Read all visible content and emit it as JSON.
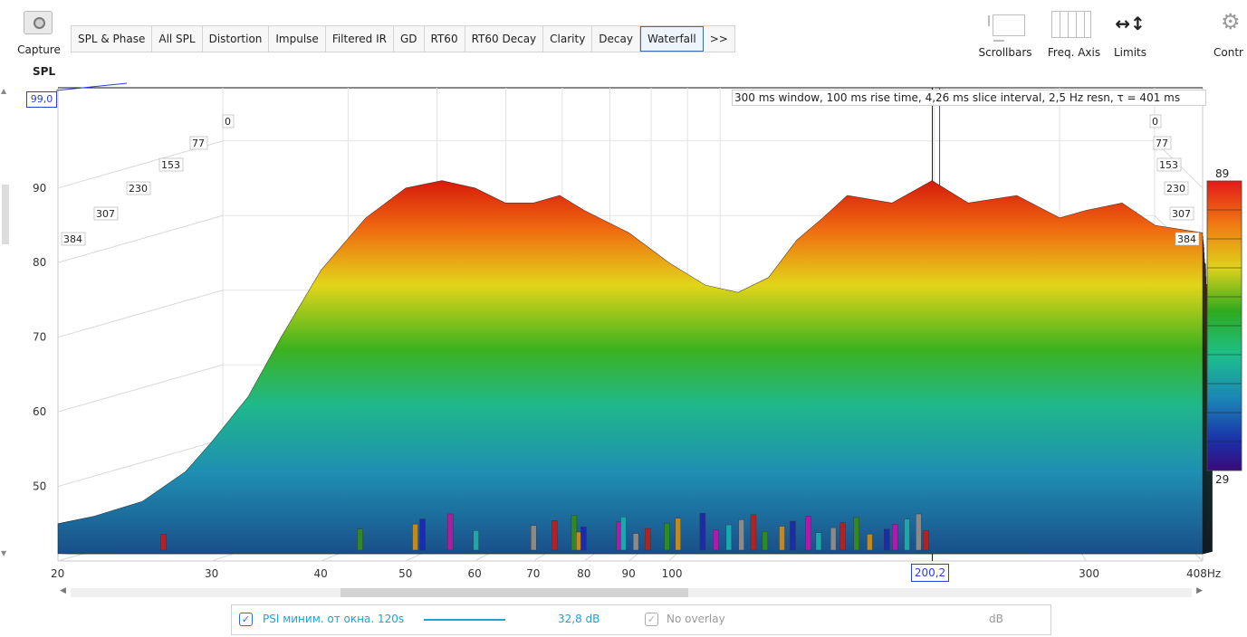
{
  "toolbar": {
    "capture_label": "Capture",
    "tabs": [
      "SPL & Phase",
      "All SPL",
      "Distortion",
      "Impulse",
      "Filtered IR",
      "GD",
      "RT60",
      "RT60 Decay",
      "Clarity",
      "Decay",
      "Waterfall",
      ">>"
    ],
    "active_tab": "Waterfall",
    "scrollbars_label": "Scrollbars",
    "freq_axis_label": "Freq. Axis",
    "limits_label": "Limits",
    "controls_label": "Contr"
  },
  "plot": {
    "y_axis_label": "SPL",
    "y_max_value": "99,0",
    "window_info": "300 ms window, 100 ms rise time, 4,26 ms slice interval, 2,5 Hz resn, τ = 401 ms",
    "cursor_freq": "200,2",
    "colors": {
      "cursor": "#2a3de0",
      "surface_high": "#d61a0c",
      "surface_low": "#1a6cb0"
    }
  },
  "chart_data": {
    "type": "area",
    "title": "",
    "xlabel": "Hz",
    "ylabel": "SPL",
    "x_scale": "log",
    "xlim": [
      20,
      408
    ],
    "ylim": [
      40,
      99
    ],
    "x_ticks": [
      "20",
      "30",
      "40",
      "50",
      "60",
      "70",
      "80",
      "90",
      "100",
      "300",
      "408Hz"
    ],
    "y_ticks": [
      "90",
      "80",
      "70",
      "60",
      "50"
    ],
    "time_ticks_left": [
      "0",
      "77",
      "153",
      "230",
      "307",
      "384"
    ],
    "time_ticks_right": [
      "0",
      "77",
      "153",
      "230",
      "307",
      "384"
    ],
    "colorbar_max": "89",
    "colorbar_min": "29",
    "front_slice": {
      "x": [
        20,
        22,
        25,
        28,
        30,
        33,
        36,
        40,
        45,
        50,
        55,
        60,
        65,
        70,
        75,
        80,
        90,
        100,
        110,
        120,
        130,
        140,
        150,
        160,
        180,
        200,
        220,
        250,
        280,
        300,
        330,
        360,
        408
      ],
      "y": [
        45,
        46,
        48,
        52,
        56,
        62,
        70,
        79,
        86,
        90,
        91,
        90,
        88,
        88,
        89,
        87,
        84,
        80,
        77,
        76,
        78,
        83,
        86,
        89,
        88,
        91,
        88,
        89,
        86,
        87,
        88,
        85,
        84
      ]
    }
  },
  "legend": {
    "trace_checked": true,
    "trace_name": "PSI миним. от окна. 120s",
    "trace_value": "32,8 dB",
    "overlay_checked": true,
    "overlay_label": "No overlay",
    "unit_label": "dB"
  }
}
